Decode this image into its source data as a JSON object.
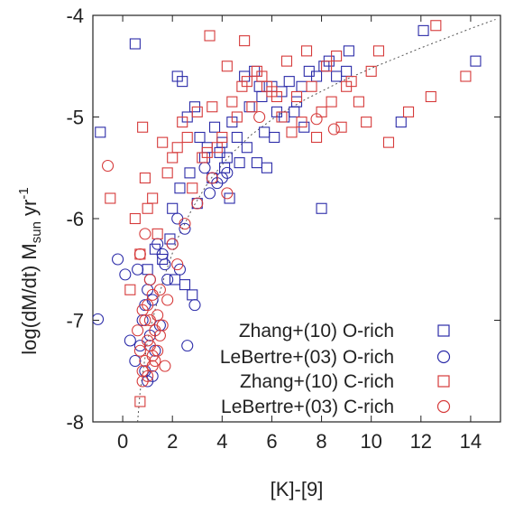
{
  "chart_data": {
    "type": "scatter",
    "xlabel": "[K]-[9]",
    "ylabel": "log(dM/dt) M",
    "ylabel_sub": "sun",
    "ylabel_unit": " yr",
    "ylabel_sup": "-1",
    "xlim": [
      -1.2,
      15.2
    ],
    "ylim": [
      -8,
      -4
    ],
    "xticks": [
      0,
      2,
      4,
      6,
      8,
      10,
      12,
      14
    ],
    "yticks": [
      -4,
      -5,
      -6,
      -7,
      -8
    ],
    "xtick_labels": [
      "0",
      "2",
      "4",
      "6",
      "8",
      "10",
      "12",
      "14"
    ],
    "ytick_labels": [
      "-4",
      "-5",
      "-6",
      "-7",
      "-8"
    ],
    "grid": false,
    "legend_position": "bottom-right",
    "colors": {
      "blue": "#2b2ba8",
      "red": "#d63a3a",
      "axis": "#222222",
      "fit": "#555555"
    },
    "fit_curve": {
      "x": [
        0.6,
        0.7,
        0.85,
        1.0,
        1.3,
        1.7,
        2.2,
        2.8,
        3.5,
        4.3,
        5.2,
        6.2,
        7.4,
        8.7,
        10.2,
        12.0,
        14.0,
        15.0
      ],
      "y": [
        -8.0,
        -7.7,
        -7.45,
        -7.2,
        -6.9,
        -6.55,
        -6.2,
        -5.9,
        -5.62,
        -5.38,
        -5.17,
        -4.99,
        -4.82,
        -4.66,
        -4.5,
        -4.32,
        -4.13,
        -4.04
      ]
    },
    "series": [
      {
        "name": "Zhang+(10) O-rich",
        "marker": "square",
        "color": "#2b2ba8",
        "x": [
          -0.9,
          0.5,
          2.2,
          2.4,
          2.6,
          2.9,
          3.1,
          3.4,
          3.7,
          4.0,
          4.2,
          4.4,
          4.6,
          4.9,
          5.1,
          5.3,
          5.5,
          5.6,
          5.8,
          6.0,
          6.2,
          6.4,
          6.7,
          7.0,
          7.2,
          7.5,
          7.8,
          8.1,
          8.3,
          8.6,
          9.1,
          9.0,
          11.2,
          12.1,
          14.2,
          2.0,
          2.3,
          2.7,
          3.0,
          3.3,
          3.6,
          3.9,
          4.1,
          4.3,
          4.7,
          5.0,
          5.4,
          5.7,
          6.1,
          6.5,
          6.9,
          7.3,
          8.0,
          1.0,
          1.3,
          1.6,
          1.9,
          2.1,
          2.5,
          2.8
        ],
        "y": [
          -5.15,
          -4.28,
          -4.6,
          -4.65,
          -5.0,
          -4.9,
          -5.2,
          -5.3,
          -5.1,
          -5.25,
          -5.4,
          -5.05,
          -5.2,
          -4.6,
          -4.9,
          -4.55,
          -4.7,
          -4.8,
          -5.5,
          -4.7,
          -4.95,
          -4.75,
          -4.65,
          -4.85,
          -4.7,
          -4.55,
          -4.6,
          -4.5,
          -4.45,
          -4.6,
          -4.35,
          -4.55,
          -5.05,
          -4.15,
          -4.45,
          -5.9,
          -5.7,
          -5.55,
          -5.85,
          -5.4,
          -5.6,
          -5.35,
          -5.5,
          -5.8,
          -5.45,
          -5.3,
          -5.45,
          -5.15,
          -5.2,
          -5.0,
          -4.95,
          -5.1,
          -5.9,
          -6.5,
          -6.3,
          -6.4,
          -6.2,
          -6.6,
          -6.65,
          -6.75
        ]
      },
      {
        "name": "LeBertre+(03) O-rich",
        "marker": "circle",
        "color": "#2b2ba8",
        "x": [
          -1.0,
          -0.2,
          0.1,
          0.3,
          0.5,
          0.7,
          0.8,
          0.9,
          1.0,
          1.1,
          1.2,
          1.3,
          1.5,
          1.6,
          1.8,
          2.0,
          2.3,
          2.6,
          2.9,
          3.3,
          3.5,
          3.8,
          4.0,
          4.2,
          0.6,
          0.9,
          1.1,
          1.4,
          1.7,
          2.2,
          2.5,
          1.0,
          1.2
        ],
        "y": [
          -6.99,
          -6.4,
          -6.55,
          -7.2,
          -7.4,
          -7.25,
          -7.0,
          -6.85,
          -6.7,
          -6.6,
          -6.8,
          -7.3,
          -7.05,
          -6.35,
          -6.6,
          -6.25,
          -6.5,
          -7.25,
          -6.85,
          -5.5,
          -5.75,
          -5.65,
          -5.6,
          -5.55,
          -6.5,
          -7.5,
          -7.15,
          -6.25,
          -6.45,
          -6.0,
          -6.1,
          -7.6,
          -7.55
        ]
      },
      {
        "name": "Zhang+(10) C-rich",
        "marker": "square",
        "color": "#d63a3a",
        "x": [
          -0.5,
          0.3,
          0.5,
          0.7,
          0.8,
          0.9,
          1.0,
          1.2,
          1.4,
          1.6,
          1.8,
          2.0,
          2.2,
          2.4,
          2.6,
          2.8,
          3.0,
          3.2,
          3.4,
          3.6,
          3.8,
          4.0,
          4.2,
          4.4,
          4.6,
          4.8,
          5.0,
          5.2,
          5.4,
          5.6,
          5.8,
          6.0,
          6.2,
          6.4,
          6.6,
          6.8,
          7.0,
          7.2,
          7.4,
          7.6,
          7.8,
          8.0,
          8.2,
          8.4,
          8.6,
          8.8,
          9.0,
          9.2,
          9.5,
          9.8,
          10.0,
          10.3,
          10.7,
          11.5,
          12.4,
          12.6,
          13.8,
          3.5,
          4.9,
          0.7
        ],
        "y": [
          -5.8,
          -6.7,
          -6.0,
          -6.35,
          -5.1,
          -5.6,
          -5.9,
          -5.8,
          -6.15,
          -5.25,
          -5.55,
          -5.4,
          -5.3,
          -5.05,
          -5.2,
          -5.7,
          -4.95,
          -5.4,
          -5.35,
          -4.9,
          -5.3,
          -5.2,
          -4.5,
          -4.85,
          -5.0,
          -4.7,
          -4.65,
          -4.9,
          -4.55,
          -4.6,
          -4.7,
          -4.75,
          -4.8,
          -5.0,
          -4.45,
          -5.15,
          -4.8,
          -5.05,
          -4.35,
          -4.7,
          -5.2,
          -4.95,
          -4.5,
          -4.85,
          -4.4,
          -5.1,
          -4.7,
          -4.65,
          -4.85,
          -5.05,
          -4.55,
          -4.35,
          -5.25,
          -4.95,
          -4.8,
          -4.1,
          -4.6,
          -4.2,
          -4.25,
          -7.8
        ]
      },
      {
        "name": "LeBertre+(03) C-rich",
        "marker": "circle",
        "color": "#d63a3a",
        "x": [
          -0.6,
          0.6,
          0.7,
          0.8,
          0.9,
          1.0,
          1.1,
          1.2,
          1.3,
          1.4,
          1.5,
          1.6,
          1.7,
          0.8,
          0.9,
          1.0,
          1.1,
          1.2,
          1.3,
          1.4,
          0.7,
          0.9,
          1.1,
          1.5,
          2.0,
          2.5,
          3.0,
          3.6,
          4.2,
          5.5,
          7.8,
          8.5,
          1.8,
          2.2,
          0.8,
          1.0,
          1.2
        ],
        "y": [
          -5.48,
          -7.1,
          -7.3,
          -7.5,
          -7.4,
          -7.2,
          -7.0,
          -7.35,
          -7.1,
          -6.95,
          -7.15,
          -7.05,
          -7.45,
          -6.9,
          -7.0,
          -7.55,
          -7.25,
          -7.45,
          -7.4,
          -7.3,
          -6.35,
          -6.15,
          -6.6,
          -6.7,
          -6.25,
          -6.05,
          -5.85,
          -5.6,
          -5.75,
          -5.0,
          -5.02,
          -5.12,
          -6.8,
          -6.45,
          -7.6,
          -6.85,
          -6.75
        ]
      }
    ]
  }
}
